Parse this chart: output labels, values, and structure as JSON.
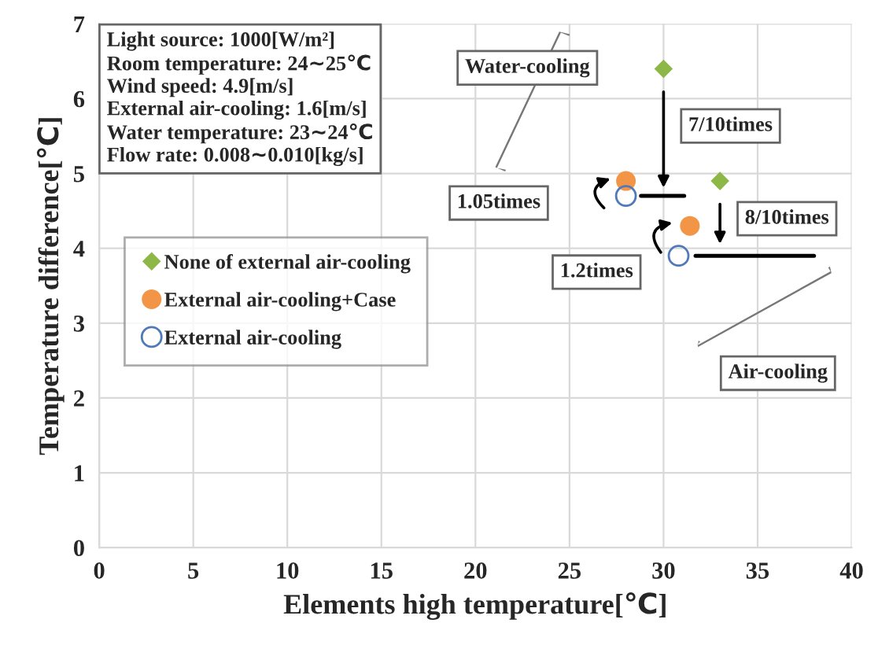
{
  "chart_data": {
    "type": "scatter",
    "xlabel": "Elements high temperature[℃]",
    "ylabel": "Temperature difference[℃]",
    "series": [
      {
        "name": "None of external air-cooling",
        "color": "#8db848",
        "marker": "diamond",
        "x": [
          30.0,
          33.0
        ],
        "values": [
          6.4,
          4.9
        ]
      },
      {
        "name": "External air-cooling+Case",
        "color": "#f39546",
        "marker": "circle",
        "x": [
          28.0,
          31.4
        ],
        "values": [
          4.9,
          4.3
        ]
      },
      {
        "name": "External air-cooling",
        "color": "#4f79b8",
        "marker": "circle-open",
        "x": [
          28.0,
          30.8
        ],
        "values": [
          4.7,
          3.9
        ]
      },
      {
        "type": "line",
        "color": "#000000",
        "marker": "none",
        "x": [
          28.8,
          31.1
        ],
        "values": [
          4.7,
          4.7
        ]
      },
      {
        "type": "line",
        "color": "#000000",
        "marker": "none",
        "x": [
          31.7,
          38.0
        ],
        "values": [
          3.9,
          3.9
        ]
      }
    ],
    "xlim": [
      0,
      40
    ],
    "xticks": [
      0,
      5,
      10,
      15,
      20,
      25,
      30,
      35,
      40
    ],
    "ylim": [
      0,
      7
    ],
    "yticks": [
      0,
      1,
      2,
      3,
      4,
      5,
      6,
      7
    ],
    "grid": true,
    "legend": "center left",
    "annotations": [
      "Light source: 1000[W/m²]\nRoom temperature: 24∼25℃\nWind speed: 4.9[m/s]\nExternal air-cooling: 1.6[m/s]\nWater temperature: 23∼24℃\nFlow rate: 0.008∼0.010[kg/s]",
      "Water-cooling",
      "7/10times",
      "1.05times",
      "8/10times",
      "1.2times",
      "Air-cooling"
    ]
  }
}
